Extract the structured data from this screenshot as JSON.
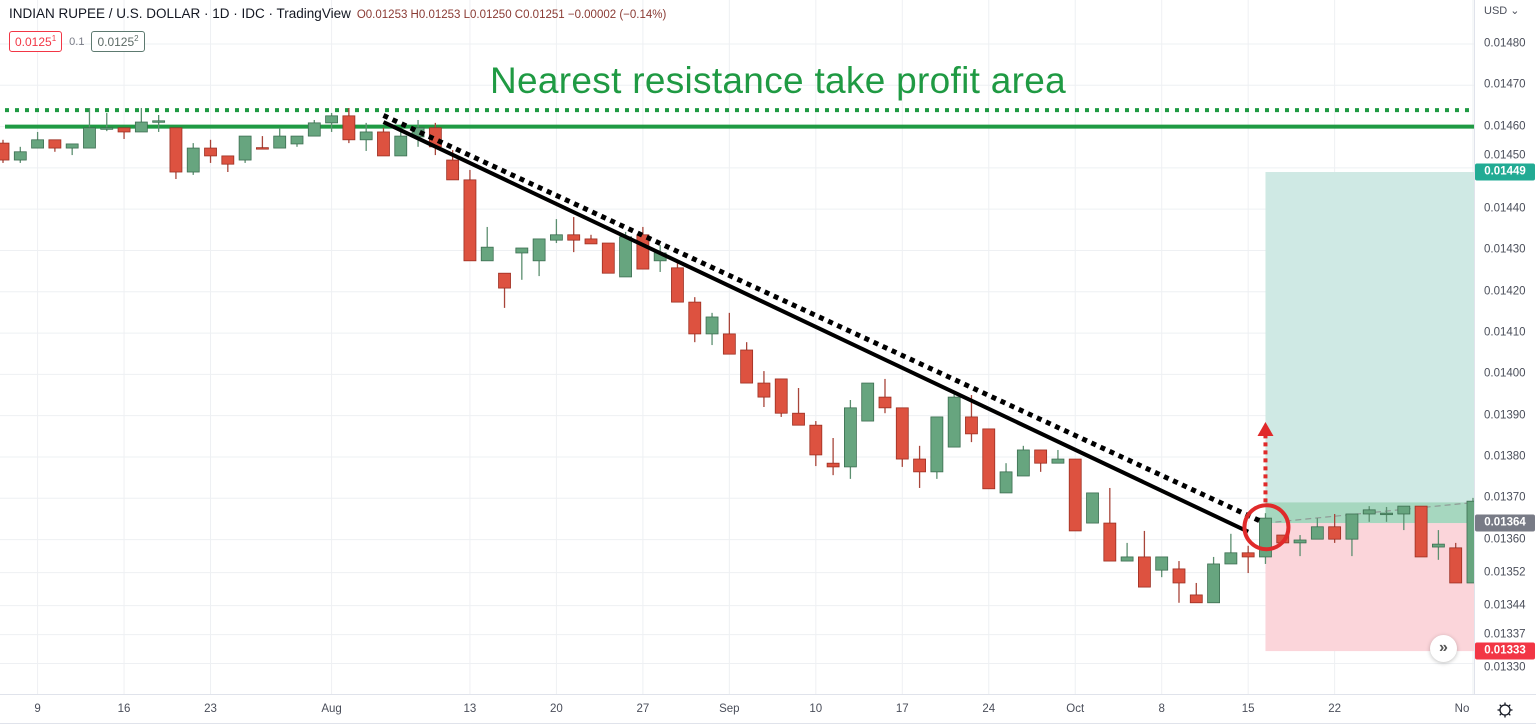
{
  "header": {
    "symbol": "INDIAN RUPEE / U.S. DOLLAR · 1D · IDC · TradingView",
    "ohlc": "O0.01253 H0.01253 L0.01250 C0.01251 −0.00002 (−0.14%)",
    "sell_price_main": "0.0125",
    "sell_price_sup": "1",
    "spread": "0.1",
    "buy_price_main": "0.0125",
    "buy_price_sup": "2"
  },
  "annotation_text": "Nearest resistance take profit area",
  "price_axis": {
    "currency": "USD ⌄",
    "ticks": [
      "0.01480",
      "0.01470",
      "0.01460",
      "0.01450",
      "0.01440",
      "0.01430",
      "0.01420",
      "0.01410",
      "0.01400",
      "0.01390",
      "0.01380",
      "0.01370",
      "0.01360",
      "0.01352",
      "0.01344",
      "0.01337",
      "0.01330"
    ],
    "target_label": "0.01449",
    "entry_label": "0.01364",
    "stop_label": "0.01333"
  },
  "colors": {
    "up": "#67a57f",
    "down": "#dd5240",
    "resistance": "#1f9a43",
    "target": "#22ab94",
    "stop": "#f23645",
    "entry": "#787b86",
    "circle": "#e02a2a"
  },
  "icons": {
    "settings": "gear-icon",
    "scroll": "double-chevron-right-icon"
  },
  "chart_data": {
    "type": "candlestick",
    "title": "",
    "ylim": [
      0.01328,
      0.01484
    ],
    "grid": true,
    "x_ticks": [
      {
        "label": "9",
        "index": 2
      },
      {
        "label": "16",
        "index": 7
      },
      {
        "label": "23",
        "index": 12
      },
      {
        "label": "Aug",
        "index": 19
      },
      {
        "label": "13",
        "index": 27
      },
      {
        "label": "20",
        "index": 32
      },
      {
        "label": "27",
        "index": 37
      },
      {
        "label": "Sep",
        "index": 42
      },
      {
        "label": "10",
        "index": 47
      },
      {
        "label": "17",
        "index": 52
      },
      {
        "label": "24",
        "index": 57
      },
      {
        "label": "Oct",
        "index": 62
      },
      {
        "label": "8",
        "index": 67
      },
      {
        "label": "15",
        "index": 72
      },
      {
        "label": "22",
        "index": 77
      },
      {
        "label": "No",
        "index": 85
      }
    ],
    "candles_ohlc": [
      [
        0.01456,
        0.014568,
        0.014512,
        0.014519
      ],
      [
        0.014519,
        0.014551,
        0.014512,
        0.014539
      ],
      [
        0.014548,
        0.014587,
        0.014548,
        0.014568
      ],
      [
        0.014568,
        0.014568,
        0.014539,
        0.014548
      ],
      [
        0.014548,
        0.014558,
        0.014531,
        0.014558
      ],
      [
        0.014548,
        0.014645,
        0.014548,
        0.014597
      ],
      [
        0.014595,
        0.014633,
        0.014589,
        0.014597
      ],
      [
        0.014597,
        0.014597,
        0.01457,
        0.014587
      ],
      [
        0.014587,
        0.014645,
        0.014587,
        0.014611
      ],
      [
        0.014611,
        0.014628,
        0.014587,
        0.014614
      ],
      [
        0.014597,
        0.014597,
        0.014473,
        0.01449
      ],
      [
        0.01449,
        0.01456,
        0.014483,
        0.014548
      ],
      [
        0.014548,
        0.014568,
        0.014512,
        0.014529
      ],
      [
        0.014529,
        0.014529,
        0.01449,
        0.014509
      ],
      [
        0.014519,
        0.014577,
        0.014512,
        0.014577
      ],
      [
        0.014549,
        0.014577,
        0.014548,
        0.014548
      ],
      [
        0.014548,
        0.014597,
        0.014548,
        0.014577
      ],
      [
        0.014558,
        0.014577,
        0.014551,
        0.014577
      ],
      [
        0.014577,
        0.014616,
        0.014577,
        0.014609
      ],
      [
        0.014609,
        0.014633,
        0.014587,
        0.014626
      ],
      [
        0.014626,
        0.014645,
        0.01456,
        0.014568
      ],
      [
        0.014568,
        0.014609,
        0.014541,
        0.014587
      ],
      [
        0.014587,
        0.014597,
        0.014529,
        0.014529
      ],
      [
        0.014529,
        0.014597,
        0.014529,
        0.014577
      ],
      [
        0.014575,
        0.014616,
        0.014551,
        0.014597
      ],
      [
        0.014597,
        0.014609,
        0.014531,
        0.014551
      ],
      [
        0.014519,
        0.014543,
        0.014471,
        0.014471
      ],
      [
        0.014471,
        0.014495,
        0.014275,
        0.014275
      ],
      [
        0.014275,
        0.014357,
        0.014275,
        0.014308
      ],
      [
        0.014245,
        0.014245,
        0.014161,
        0.014209
      ],
      [
        0.014294,
        0.014306,
        0.014229,
        0.014306
      ],
      [
        0.014275,
        0.014328,
        0.014238,
        0.014328
      ],
      [
        0.014325,
        0.014376,
        0.014318,
        0.014338
      ],
      [
        0.014338,
        0.014381,
        0.014296,
        0.014325
      ],
      [
        0.014328,
        0.014338,
        0.014316,
        0.014316
      ],
      [
        0.014318,
        0.014318,
        0.014245,
        0.014245
      ],
      [
        0.014236,
        0.014345,
        0.014236,
        0.014333
      ],
      [
        0.014338,
        0.014357,
        0.014255,
        0.014255
      ],
      [
        0.014275,
        0.014313,
        0.014248,
        0.014294
      ],
      [
        0.014258,
        0.01427,
        0.014175,
        0.014175
      ],
      [
        0.014175,
        0.014187,
        0.014078,
        0.014098
      ],
      [
        0.014098,
        0.014149,
        0.014071,
        0.014139
      ],
      [
        0.014098,
        0.014149,
        0.014049,
        0.014049
      ],
      [
        0.014059,
        0.014078,
        0.013979,
        0.013979
      ],
      [
        0.013979,
        0.014008,
        0.013921,
        0.013945
      ],
      [
        0.013989,
        0.013989,
        0.013897,
        0.013906
      ],
      [
        0.013906,
        0.013967,
        0.013877,
        0.013877
      ],
      [
        0.013877,
        0.013887,
        0.013778,
        0.013805
      ],
      [
        0.013785,
        0.013846,
        0.013756,
        0.013776
      ],
      [
        0.013776,
        0.013938,
        0.013747,
        0.013919
      ],
      [
        0.013887,
        0.013979,
        0.013887,
        0.013979
      ],
      [
        0.013945,
        0.013989,
        0.013906,
        0.013919
      ],
      [
        0.013919,
        0.013919,
        0.013776,
        0.013795
      ],
      [
        0.013795,
        0.013827,
        0.013725,
        0.013764
      ],
      [
        0.013764,
        0.013897,
        0.013747,
        0.013897
      ],
      [
        0.013824,
        0.013955,
        0.013824,
        0.013945
      ],
      [
        0.013897,
        0.01395,
        0.013836,
        0.013856
      ],
      [
        0.013868,
        0.013868,
        0.013723,
        0.013723
      ],
      [
        0.013713,
        0.013785,
        0.013713,
        0.013764
      ],
      [
        0.013754,
        0.013827,
        0.013754,
        0.013817
      ],
      [
        0.013817,
        0.013817,
        0.013764,
        0.013785
      ],
      [
        0.013785,
        0.013817,
        0.013785,
        0.013795
      ],
      [
        0.013795,
        0.013795,
        0.013621,
        0.013621
      ],
      [
        0.01364,
        0.013713,
        0.01364,
        0.013713
      ],
      [
        0.01364,
        0.013725,
        0.013548,
        0.013548
      ],
      [
        0.013548,
        0.013592,
        0.013548,
        0.013558
      ],
      [
        0.013558,
        0.013621,
        0.013485,
        0.013485
      ],
      [
        0.013526,
        0.013558,
        0.013509,
        0.013558
      ],
      [
        0.013529,
        0.013548,
        0.013447,
        0.013495
      ],
      [
        0.013466,
        0.013495,
        0.013447,
        0.013447
      ],
      [
        0.013447,
        0.013558,
        0.013447,
        0.013541
      ],
      [
        0.013541,
        0.013614,
        0.013541,
        0.013568
      ],
      [
        0.013568,
        0.013585,
        0.013519,
        0.013558
      ],
      [
        0.013558,
        0.013664,
        0.013541,
        0.013652
      ],
      [
        0.013611,
        0.013611,
        0.013592,
        0.013592
      ],
      [
        0.013592,
        0.013611,
        0.01356,
        0.013599
      ],
      [
        0.013601,
        0.013652,
        0.013601,
        0.013631
      ],
      [
        0.013631,
        0.013662,
        0.013592,
        0.013601
      ],
      [
        0.013601,
        0.013662,
        0.01356,
        0.013662
      ],
      [
        0.013662,
        0.013681,
        0.013643,
        0.013672
      ],
      [
        0.013662,
        0.013679,
        0.013643,
        0.013664
      ],
      [
        0.013662,
        0.013681,
        0.013623,
        0.013681
      ],
      [
        0.013681,
        0.013681,
        0.013558,
        0.013558
      ],
      [
        0.013582,
        0.013623,
        0.013551,
        0.013589
      ],
      [
        0.01358,
        0.013592,
        0.013495,
        0.013495
      ],
      [
        0.013495,
        0.013701,
        0.013495,
        0.013693
      ]
    ],
    "overlays": {
      "resistance_line": 0.0146,
      "resistance_dotted_line": 0.01464,
      "trendline": {
        "from": {
          "index": 22,
          "price": 0.014611
        },
        "to": {
          "index": 72,
          "price": 0.013619
        }
      },
      "trendline_dotted": {
        "from": {
          "index": 22,
          "price": 0.014627
        },
        "to": {
          "index": 72.8,
          "price": 0.013643
        }
      },
      "long_position": {
        "start_index": 73,
        "end_index": 85,
        "target": 0.01449,
        "entry": 0.01364,
        "stop": 0.01333,
        "current": 0.01369
      },
      "breakout_circle": {
        "index": 73,
        "price": 0.01363
      },
      "breakout_arrow": {
        "index": 73,
        "from_price": 0.01369,
        "to_price": 0.01388
      }
    }
  }
}
